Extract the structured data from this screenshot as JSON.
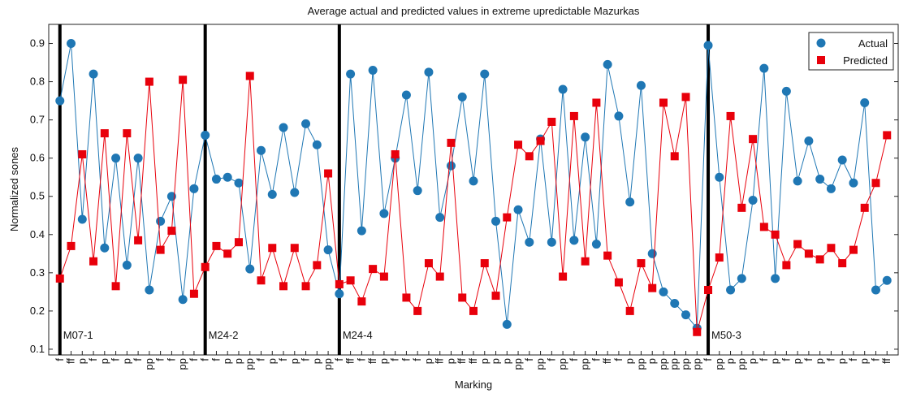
{
  "chart_data": {
    "type": "line",
    "title": "Average actual and predicted values in extreme upredictable Mazurkas",
    "x_label": "Marking",
    "y_label": "Normalized sones",
    "categories": [
      "f",
      "ff",
      "p",
      "f",
      "p",
      "f",
      "p",
      "f",
      "pp",
      "f",
      "f",
      "pp",
      "f",
      "f",
      "f",
      "p",
      "p",
      "pp",
      "f",
      "p",
      "f",
      "p",
      "f",
      "p",
      "pp",
      "f",
      "ff",
      "f",
      "ff",
      "p",
      "f",
      "f",
      "f",
      "p",
      "ff",
      "p",
      "ff",
      "ff",
      "p",
      "p",
      "p",
      "pp",
      "f",
      "pp",
      "f",
      "pp",
      "f",
      "pp",
      "f",
      "ff",
      "f",
      "p",
      "pp",
      "p",
      "pp",
      "pp",
      "pp",
      "pp",
      "f",
      "pp",
      "p",
      "pp",
      "p",
      "f",
      "p",
      "f",
      "p",
      "f",
      "p",
      "f",
      "p",
      "f",
      "p",
      "f",
      "ff"
    ],
    "series": [
      {
        "name": "Actual",
        "color": "#1f77b4",
        "marker": "circle",
        "values": [
          0.75,
          0.9,
          0.44,
          0.82,
          0.365,
          0.6,
          0.32,
          0.6,
          0.255,
          0.435,
          0.5,
          0.23,
          0.52,
          0.66,
          0.545,
          0.55,
          0.535,
          0.31,
          0.62,
          0.505,
          0.68,
          0.51,
          0.69,
          0.635,
          0.36,
          0.245,
          0.82,
          0.41,
          0.83,
          0.455,
          0.6,
          0.765,
          0.515,
          0.825,
          0.445,
          0.58,
          0.76,
          0.54,
          0.82,
          0.435,
          0.165,
          0.465,
          0.38,
          0.65,
          0.38,
          0.78,
          0.385,
          0.655,
          0.375,
          0.845,
          0.71,
          0.485,
          0.79,
          0.35,
          0.25,
          0.22,
          0.19,
          0.155,
          0.895,
          0.55,
          0.255,
          0.285,
          0.49,
          0.835,
          0.285,
          0.775,
          0.54,
          0.645,
          0.545,
          0.52,
          0.595,
          0.535,
          0.745,
          0.255,
          0.28
        ]
      },
      {
        "name": "Predicted",
        "color": "#e8000b",
        "marker": "square",
        "values": [
          0.285,
          0.37,
          0.61,
          0.33,
          0.665,
          0.265,
          0.665,
          0.385,
          0.8,
          0.36,
          0.41,
          0.805,
          0.245,
          0.315,
          0.37,
          0.35,
          0.38,
          0.815,
          0.28,
          0.365,
          0.265,
          0.365,
          0.265,
          0.32,
          0.56,
          0.27,
          0.28,
          0.225,
          0.31,
          0.29,
          0.61,
          0.235,
          0.2,
          0.325,
          0.29,
          0.64,
          0.235,
          0.2,
          0.325,
          0.24,
          0.445,
          0.635,
          0.605,
          0.645,
          0.695,
          0.29,
          0.71,
          0.33,
          0.745,
          0.345,
          0.275,
          0.2,
          0.325,
          0.26,
          0.745,
          0.605,
          0.76,
          0.145,
          0.255,
          0.34,
          0.71,
          0.47,
          0.65,
          0.42,
          0.4,
          0.32,
          0.375,
          0.35,
          0.335,
          0.365,
          0.325,
          0.36,
          0.47,
          0.535,
          0.66
        ]
      }
    ],
    "segments": [
      {
        "label": "M07-1",
        "index": 0
      },
      {
        "label": "M24-2",
        "index": 13
      },
      {
        "label": "M24-4",
        "index": 25
      },
      {
        "label": "M50-3",
        "index": 58
      }
    ],
    "ylim": [
      0.085,
      0.95
    ],
    "yticks": [
      0.1,
      0.2,
      0.3,
      0.4,
      0.5,
      0.6,
      0.7,
      0.8,
      0.9
    ],
    "legend": "top-right"
  }
}
